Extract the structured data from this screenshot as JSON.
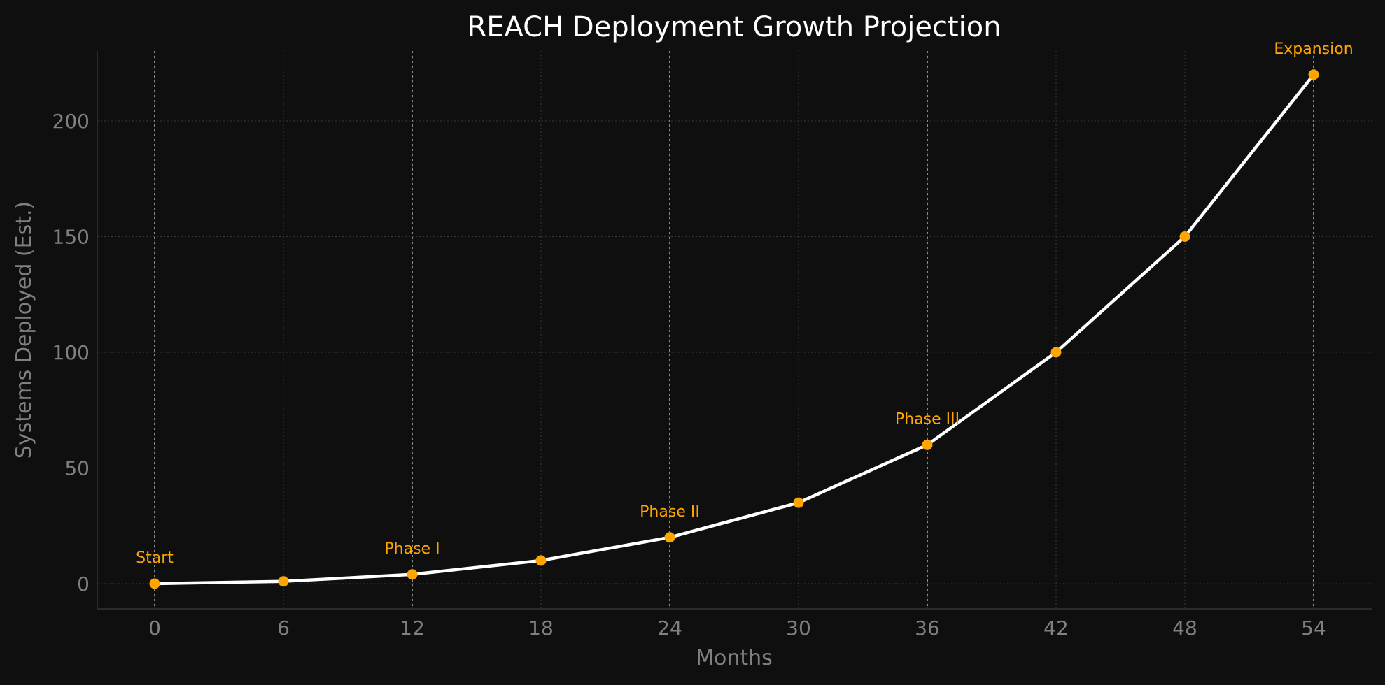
{
  "chart_data": {
    "type": "line",
    "title": "REACH Deployment Growth Projection",
    "xlabel": "Months",
    "ylabel": "Systems Deployed (Est.)",
    "x": [
      0,
      6,
      12,
      18,
      24,
      30,
      36,
      42,
      48,
      54
    ],
    "values": [
      0,
      1,
      4,
      10,
      20,
      35,
      60,
      100,
      150,
      220
    ],
    "x_ticks": [
      "0",
      "6",
      "12",
      "18",
      "24",
      "30",
      "36",
      "42",
      "48",
      "54"
    ],
    "y_ticks": [
      "0",
      "50",
      "100",
      "150",
      "200"
    ],
    "xlim": [
      -4.5,
      55.5
    ],
    "ylim": [
      -11,
      231
    ],
    "grid": true,
    "milestones": [
      {
        "x": 0,
        "label": "Start"
      },
      {
        "x": 12,
        "label": "Phase I"
      },
      {
        "x": 24,
        "label": "Phase II"
      },
      {
        "x": 36,
        "label": "Phase III"
      },
      {
        "x": 54,
        "label": "Expansion"
      }
    ],
    "colors": {
      "background": "#0f0f0f",
      "line": "#ffffff",
      "marker": "#ffa500",
      "annotation": "#ffa500",
      "text": "#808080",
      "title": "#ffffff"
    }
  }
}
